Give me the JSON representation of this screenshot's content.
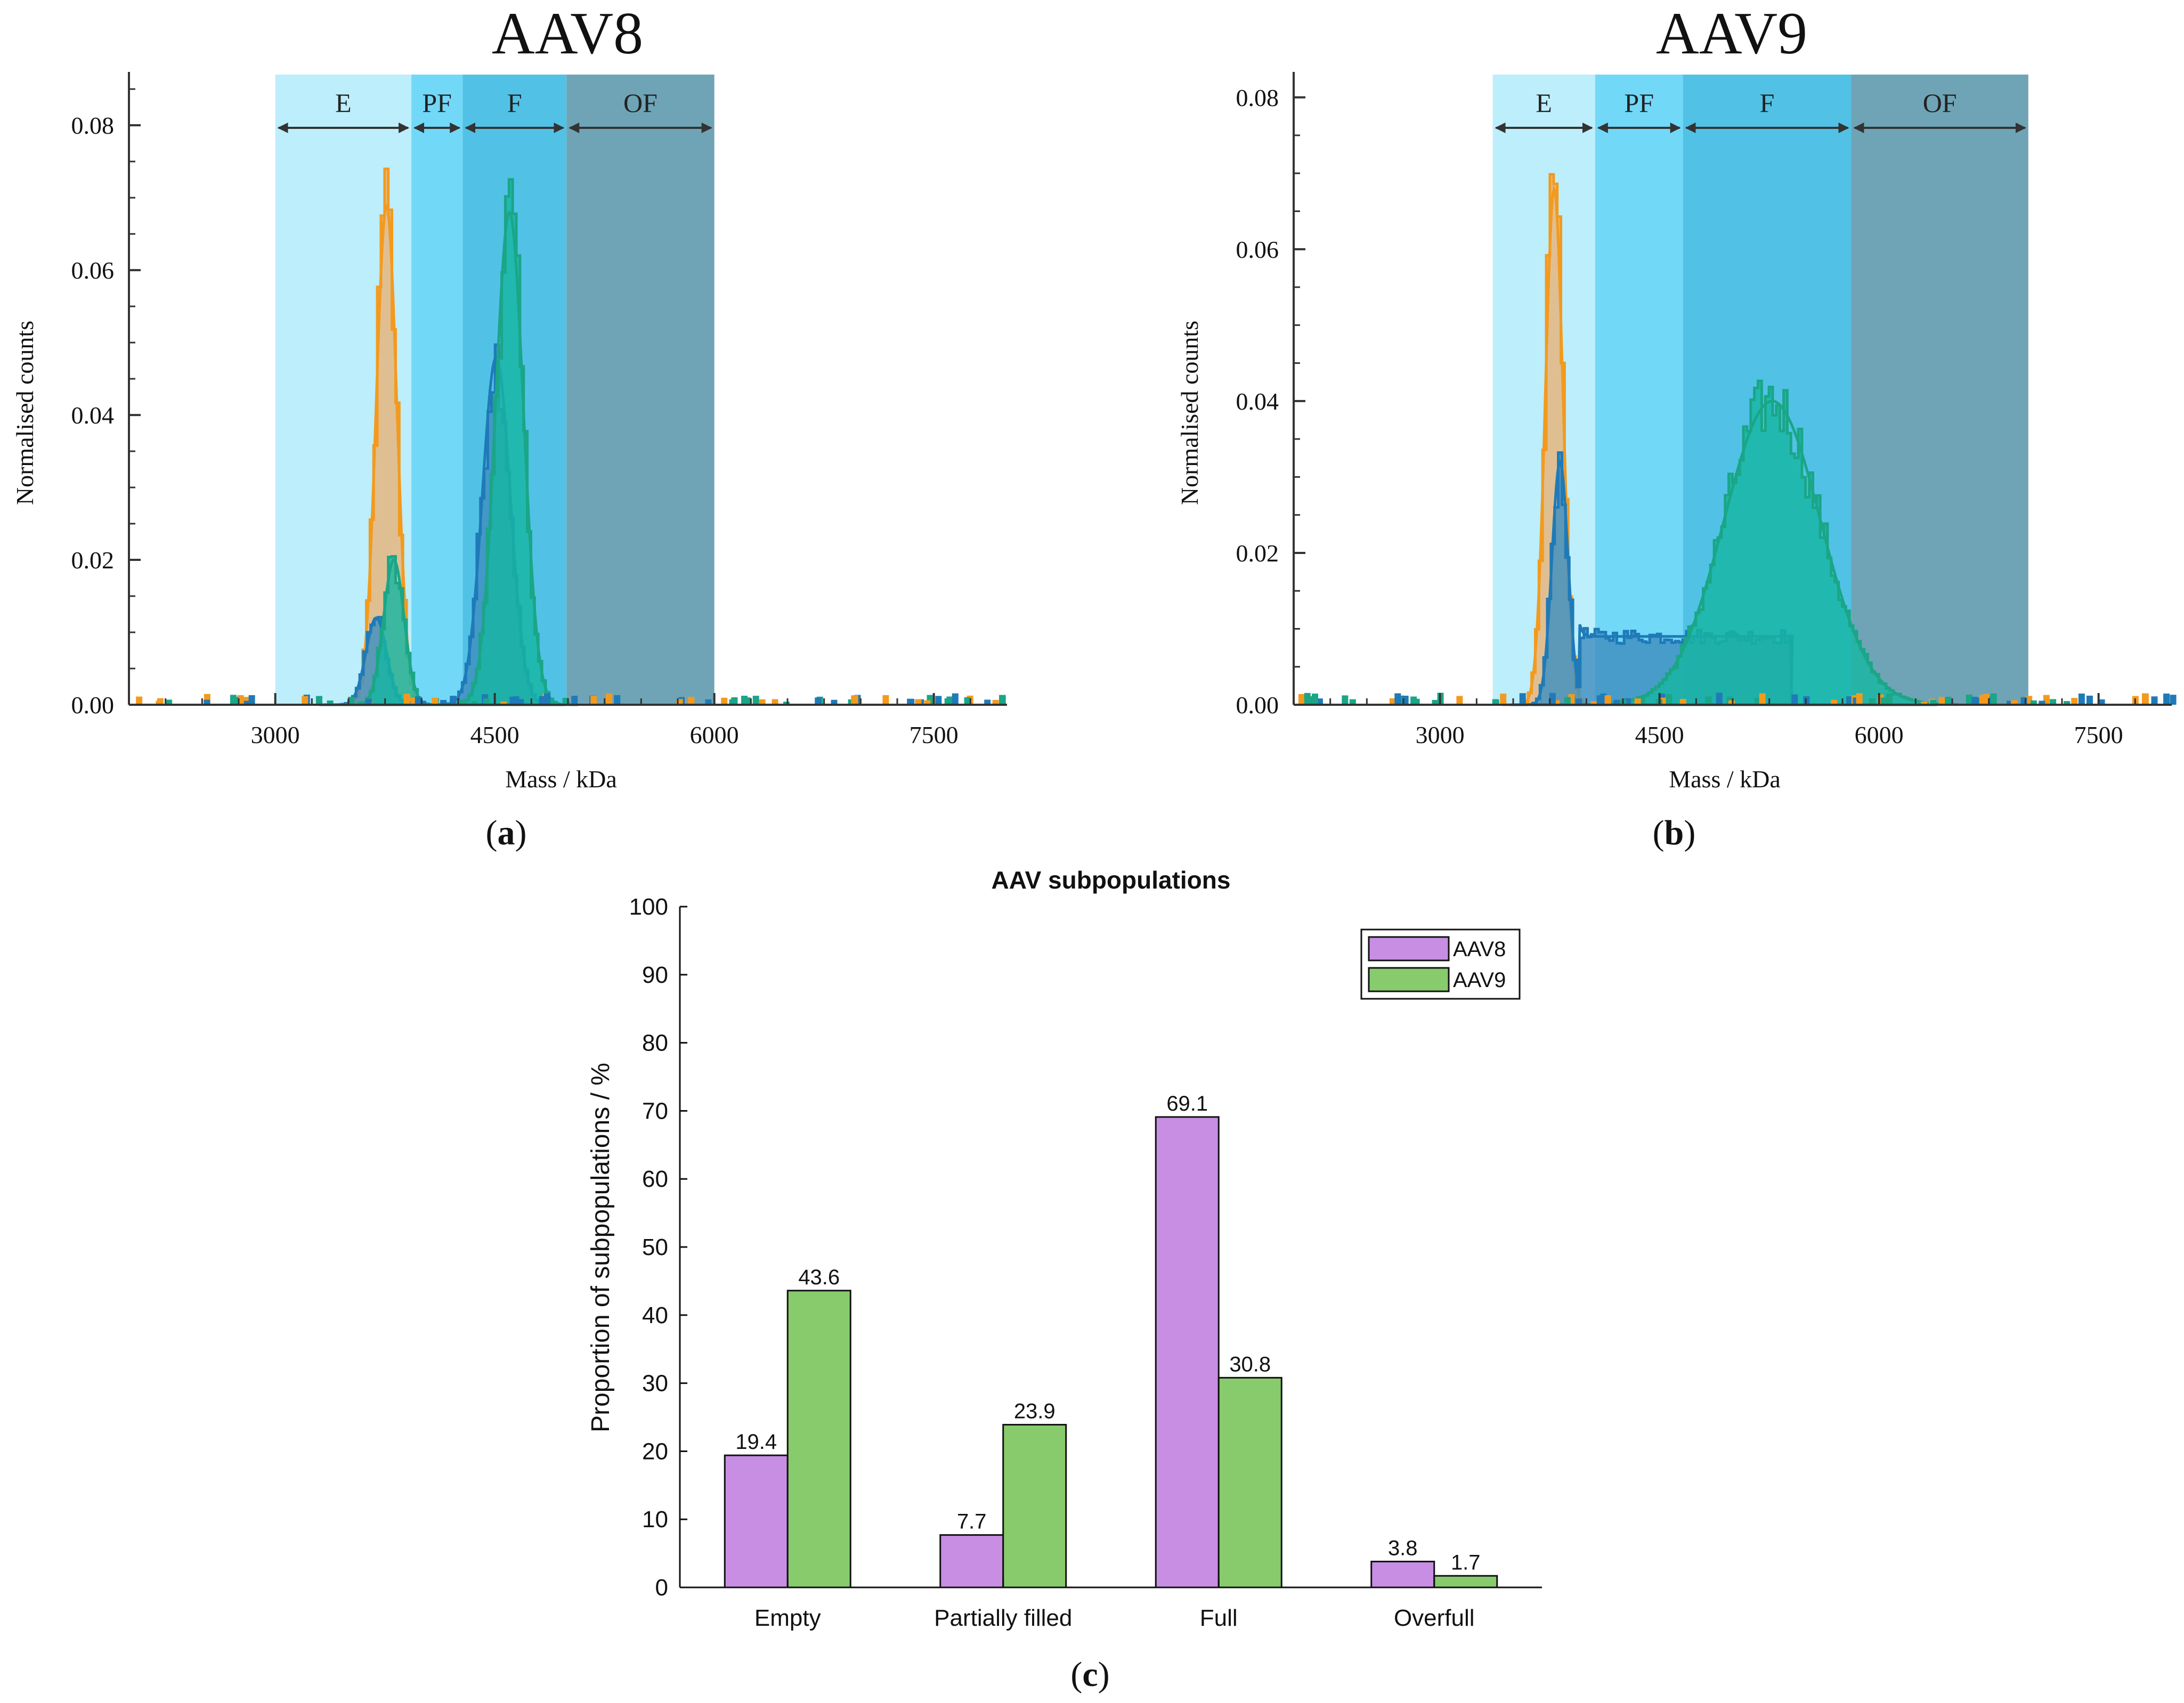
{
  "chart_data": [
    {
      "id": "a",
      "panel_label": "a",
      "type": "histogram",
      "title": "AAV8",
      "xlabel": "Mass / kDa",
      "ylabel": "Normalised counts",
      "xlim": [
        2000,
        8000
      ],
      "ylim": [
        0,
        0.087
      ],
      "xticks": [
        "3000",
        "4500",
        "6000",
        "7500"
      ],
      "yticks": [
        "0.00",
        "0.02",
        "0.04",
        "0.06",
        "0.08"
      ],
      "regions": [
        {
          "label": "E",
          "range": [
            3000,
            3930
          ],
          "color": "#bdeefc"
        },
        {
          "label": "PF",
          "range": [
            3930,
            4280
          ],
          "color": "#72d8f8"
        },
        {
          "label": "F",
          "range": [
            4280,
            4990
          ],
          "color": "#51c2e6"
        },
        {
          "label": "OF",
          "range": [
            4990,
            6000
          ],
          "color": "#6fa4b6"
        }
      ],
      "series": [
        {
          "name": "orange",
          "color": "#f39a1e",
          "fill": "#e6b47a",
          "peaks": [
            {
              "center": 3760,
              "sigma": 70,
              "height": 0.069
            }
          ]
        },
        {
          "name": "blue",
          "color": "#1f7ab8",
          "fill": "#3f8fc0",
          "peaks": [
            {
              "center": 3690,
              "sigma": 70,
              "height": 0.012
            },
            {
              "center": 4510,
              "sigma": 95,
              "height": 0.048
            }
          ]
        },
        {
          "name": "green",
          "color": "#1aa687",
          "fill": "#17b6a2",
          "peaks": [
            {
              "center": 3810,
              "sigma": 70,
              "height": 0.02
            },
            {
              "center": 4600,
              "sigma": 95,
              "height": 0.068
            }
          ]
        }
      ]
    },
    {
      "id": "b",
      "panel_label": "b",
      "type": "histogram",
      "title": "AAV9",
      "xlabel": "Mass / kDa",
      "ylabel": "Normalised counts",
      "xlim": [
        2000,
        8000
      ],
      "ylim": [
        0,
        0.083
      ],
      "xticks": [
        "3000",
        "4500",
        "6000",
        "7500"
      ],
      "yticks": [
        "0.00",
        "0.02",
        "0.04",
        "0.06",
        "0.08"
      ],
      "regions": [
        {
          "label": "E",
          "range": [
            3360,
            4060
          ],
          "color": "#bdeefc"
        },
        {
          "label": "PF",
          "range": [
            4060,
            4660
          ],
          "color": "#72d8f8"
        },
        {
          "label": "F",
          "range": [
            4660,
            5810
          ],
          "color": "#51c2e6"
        },
        {
          "label": "OF",
          "range": [
            5810,
            7020
          ],
          "color": "#6fa4b6"
        }
      ],
      "series": [
        {
          "name": "orange",
          "color": "#f39a1e",
          "fill": "#e6b47a",
          "peaks": [
            {
              "center": 3780,
              "sigma": 60,
              "height": 0.068
            }
          ]
        },
        {
          "name": "blue",
          "color": "#1f7ab8",
          "fill": "#3f8fc0",
          "peaks": [
            {
              "center": 3820,
              "sigma": 55,
              "height": 0.032
            }
          ],
          "plateau": {
            "from": 3950,
            "to": 5400,
            "level": 0.009
          }
        },
        {
          "name": "green",
          "color": "#1aa687",
          "fill": "#17b6a2",
          "peaks": [
            {
              "center": 5270,
              "sigma": 330,
              "height": 0.04
            }
          ]
        }
      ]
    },
    {
      "id": "c",
      "panel_label": "c",
      "type": "bar",
      "title": "AAV subpopulations",
      "xlabel": "",
      "ylabel": "Proportion of subpopulations / %",
      "ylim": [
        0,
        100
      ],
      "yticks": [
        "0",
        "10",
        "20",
        "30",
        "40",
        "50",
        "60",
        "70",
        "80",
        "90",
        "100"
      ],
      "categories": [
        "Empty",
        "Partially filled",
        "Full",
        "Overfull"
      ],
      "series": [
        {
          "name": "AAV8",
          "color": "#c78ee3",
          "values": [
            19.4,
            7.7,
            69.1,
            3.8
          ],
          "labels": [
            "19.4",
            "7.7",
            "69.1",
            "3.8"
          ]
        },
        {
          "name": "AAV9",
          "color": "#88cb6d",
          "values": [
            43.6,
            23.9,
            30.8,
            1.7
          ],
          "labels": [
            "43.6",
            "23.9",
            "30.8",
            "1.7"
          ]
        }
      ],
      "legend": "top-right"
    }
  ]
}
